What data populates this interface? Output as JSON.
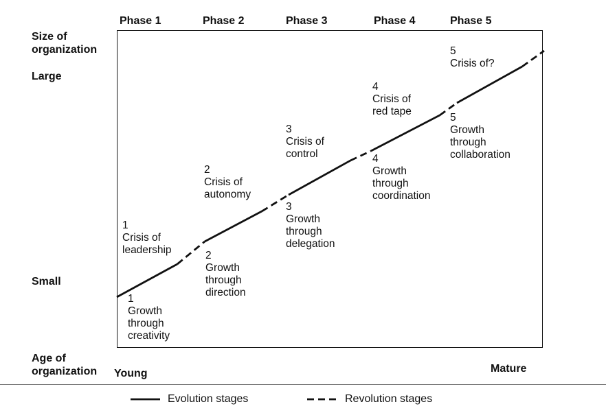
{
  "phases": [
    "Phase 1",
    "Phase 2",
    "Phase 3",
    "Phase 4",
    "Phase 5"
  ],
  "y_axis": {
    "title_lines": [
      "Size of",
      "organization"
    ],
    "high": "Large",
    "low": "Small"
  },
  "x_axis": {
    "title_lines": [
      "Age of",
      "organization"
    ],
    "low": "Young",
    "high": "Mature"
  },
  "crises": [
    {
      "num": "1",
      "lines": [
        "Crisis of",
        "leadership"
      ]
    },
    {
      "num": "2",
      "lines": [
        "Crisis of",
        "autonomy"
      ]
    },
    {
      "num": "3",
      "lines": [
        "Crisis of",
        "control"
      ]
    },
    {
      "num": "4",
      "lines": [
        "Crisis of",
        "red tape"
      ]
    },
    {
      "num": "5",
      "lines": [
        "Crisis of?"
      ]
    }
  ],
  "growths": [
    {
      "num": "1",
      "lines": [
        "Growth",
        "through",
        "creativity"
      ]
    },
    {
      "num": "2",
      "lines": [
        "Growth",
        "through",
        "direction"
      ]
    },
    {
      "num": "3",
      "lines": [
        "Growth",
        "through",
        "delegation"
      ]
    },
    {
      "num": "4",
      "lines": [
        "Growth",
        "through",
        "coordination"
      ]
    },
    {
      "num": "5",
      "lines": [
        "Growth",
        "through",
        "collaboration"
      ]
    }
  ],
  "legend": {
    "evolution": "Evolution stages",
    "revolution": "Revolution stages"
  },
  "line_color": "#111111"
}
